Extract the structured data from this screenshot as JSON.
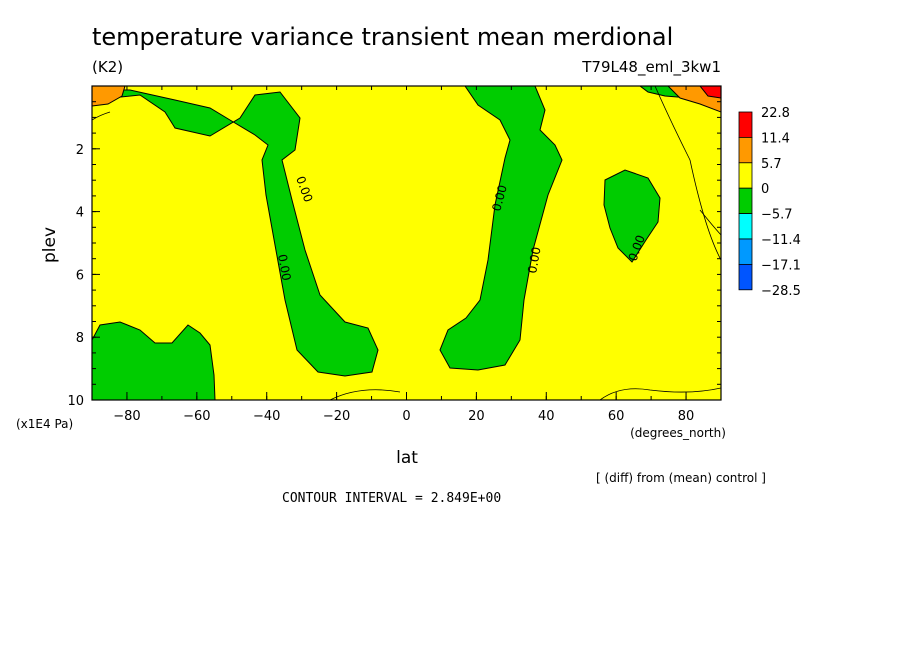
{
  "chart_data": {
    "type": "heatmap",
    "title": "temperature variance transient mean merdional",
    "units": "(K2)",
    "run_label": "T79L48_eml_3kw1",
    "xlabel": "lat",
    "x_units": "(degrees_north)",
    "ylabel": "plev",
    "y_units": "(x1E4 Pa)",
    "xlim": [
      -90,
      90
    ],
    "ylim": [
      0,
      10
    ],
    "y_inverted": true,
    "x_ticks": [
      -80,
      -60,
      -40,
      -20,
      0,
      20,
      40,
      60,
      80
    ],
    "y_ticks": [
      2,
      4,
      6,
      8,
      10
    ],
    "diff_note": "[ (diff) from (mean) control ]",
    "contour_interval_text": "CONTOUR INTERVAL = 2.849E+00",
    "contour_labels": [
      "0.00",
      "0.00",
      "0.00",
      "0.00",
      "0.00"
    ],
    "colorbar": {
      "labels": [
        "22.8",
        "11.4",
        "5.7",
        "0",
        "-5.7",
        "-11.4",
        "-17.1",
        "-28.5"
      ],
      "colors": [
        "#ff0000",
        "#ff9900",
        "#ffff00",
        "#00cc00",
        "#00ffff",
        "#0099ff",
        "#0055ff"
      ]
    },
    "regions": [
      {
        "class": "0 to 5.7",
        "color": "#ffff00",
        "area": "background (most of domain)"
      },
      {
        "class": "-5.7 to 0",
        "color": "#00cc00",
        "area": "southern band, 40S-15S, near surface to top"
      },
      {
        "class": "-5.7 to 0",
        "color": "#00cc00",
        "area": "northern band, 10N-40N, near surface to top"
      },
      {
        "class": "-5.7 to 0",
        "color": "#00cc00",
        "area": "near-surface, 90S-55S"
      },
      {
        "class": "-5.7 to 0",
        "color": "#00cc00",
        "area": "isolated cell near 60N-75N, plev 3-6"
      },
      {
        "class": "5.7 to 11.4",
        "color": "#ff9900",
        "area": "top-left corner near 90S"
      },
      {
        "class": "5.7 to 11.4",
        "color": "#ff9900",
        "area": "top-right near 80N-90N"
      },
      {
        "class": "above 11.4",
        "color": "#ff0000",
        "area": "top-right corner near 85N-90N"
      }
    ]
  }
}
